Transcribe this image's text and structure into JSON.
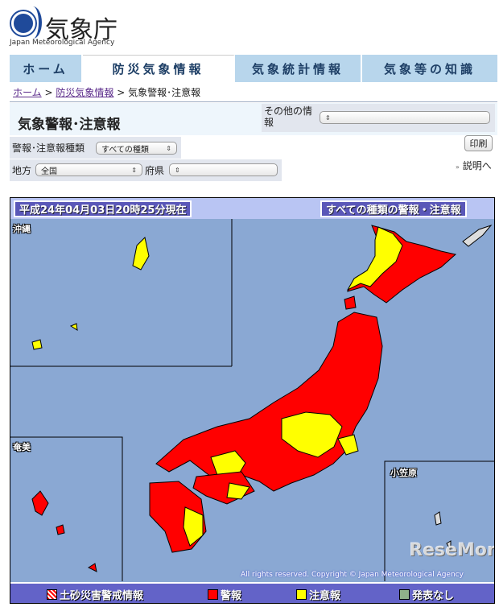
{
  "header": {
    "logo_text": "気象庁",
    "logo_subtitle": "Japan Meteorological Agency"
  },
  "nav": {
    "tabs": [
      {
        "label": "ホーム"
      },
      {
        "label": "防災気象情報",
        "active": true
      },
      {
        "label": "気象統計情報"
      },
      {
        "label": "気象等の知識"
      }
    ]
  },
  "breadcrumb": {
    "items": [
      "ホーム",
      "防災気象情報",
      "気象警報･注意報"
    ],
    "separator": ">"
  },
  "page": {
    "title": "気象警報･注意報",
    "other_info_label": "その他の情報",
    "other_info_value": ""
  },
  "filters": {
    "type_label": "警報･注意報種類",
    "type_value": "すべての種類",
    "region_label": "地方",
    "region_value": "全国",
    "pref_label": "府県",
    "pref_value": ""
  },
  "actions": {
    "print_label": "印刷",
    "explain_link": "説明へ"
  },
  "map": {
    "timestamp": "平成24年04月03日20時25分現在",
    "kind": "すべての種類の警報・注意報",
    "inset_labels": {
      "okinawa": "沖縄",
      "amami": "奄美",
      "ogasawara": "小笠原"
    },
    "copyright": "All rights reserved. Copyright © Japan Meteorological Agency",
    "watermark": "ReseMom",
    "colors": {
      "sea": "#8aa8d3",
      "warning": "#ff0000",
      "advisory": "#ffff00",
      "none": "#8fb08a"
    }
  },
  "legend": [
    {
      "label": "土砂災害警戒情報",
      "color": "#ff0000",
      "pattern": "hatched"
    },
    {
      "label": "警報",
      "color": "#ff0000"
    },
    {
      "label": "注意報",
      "color": "#ffff00"
    },
    {
      "label": "発表なし",
      "color": "#8fb08a"
    }
  ]
}
